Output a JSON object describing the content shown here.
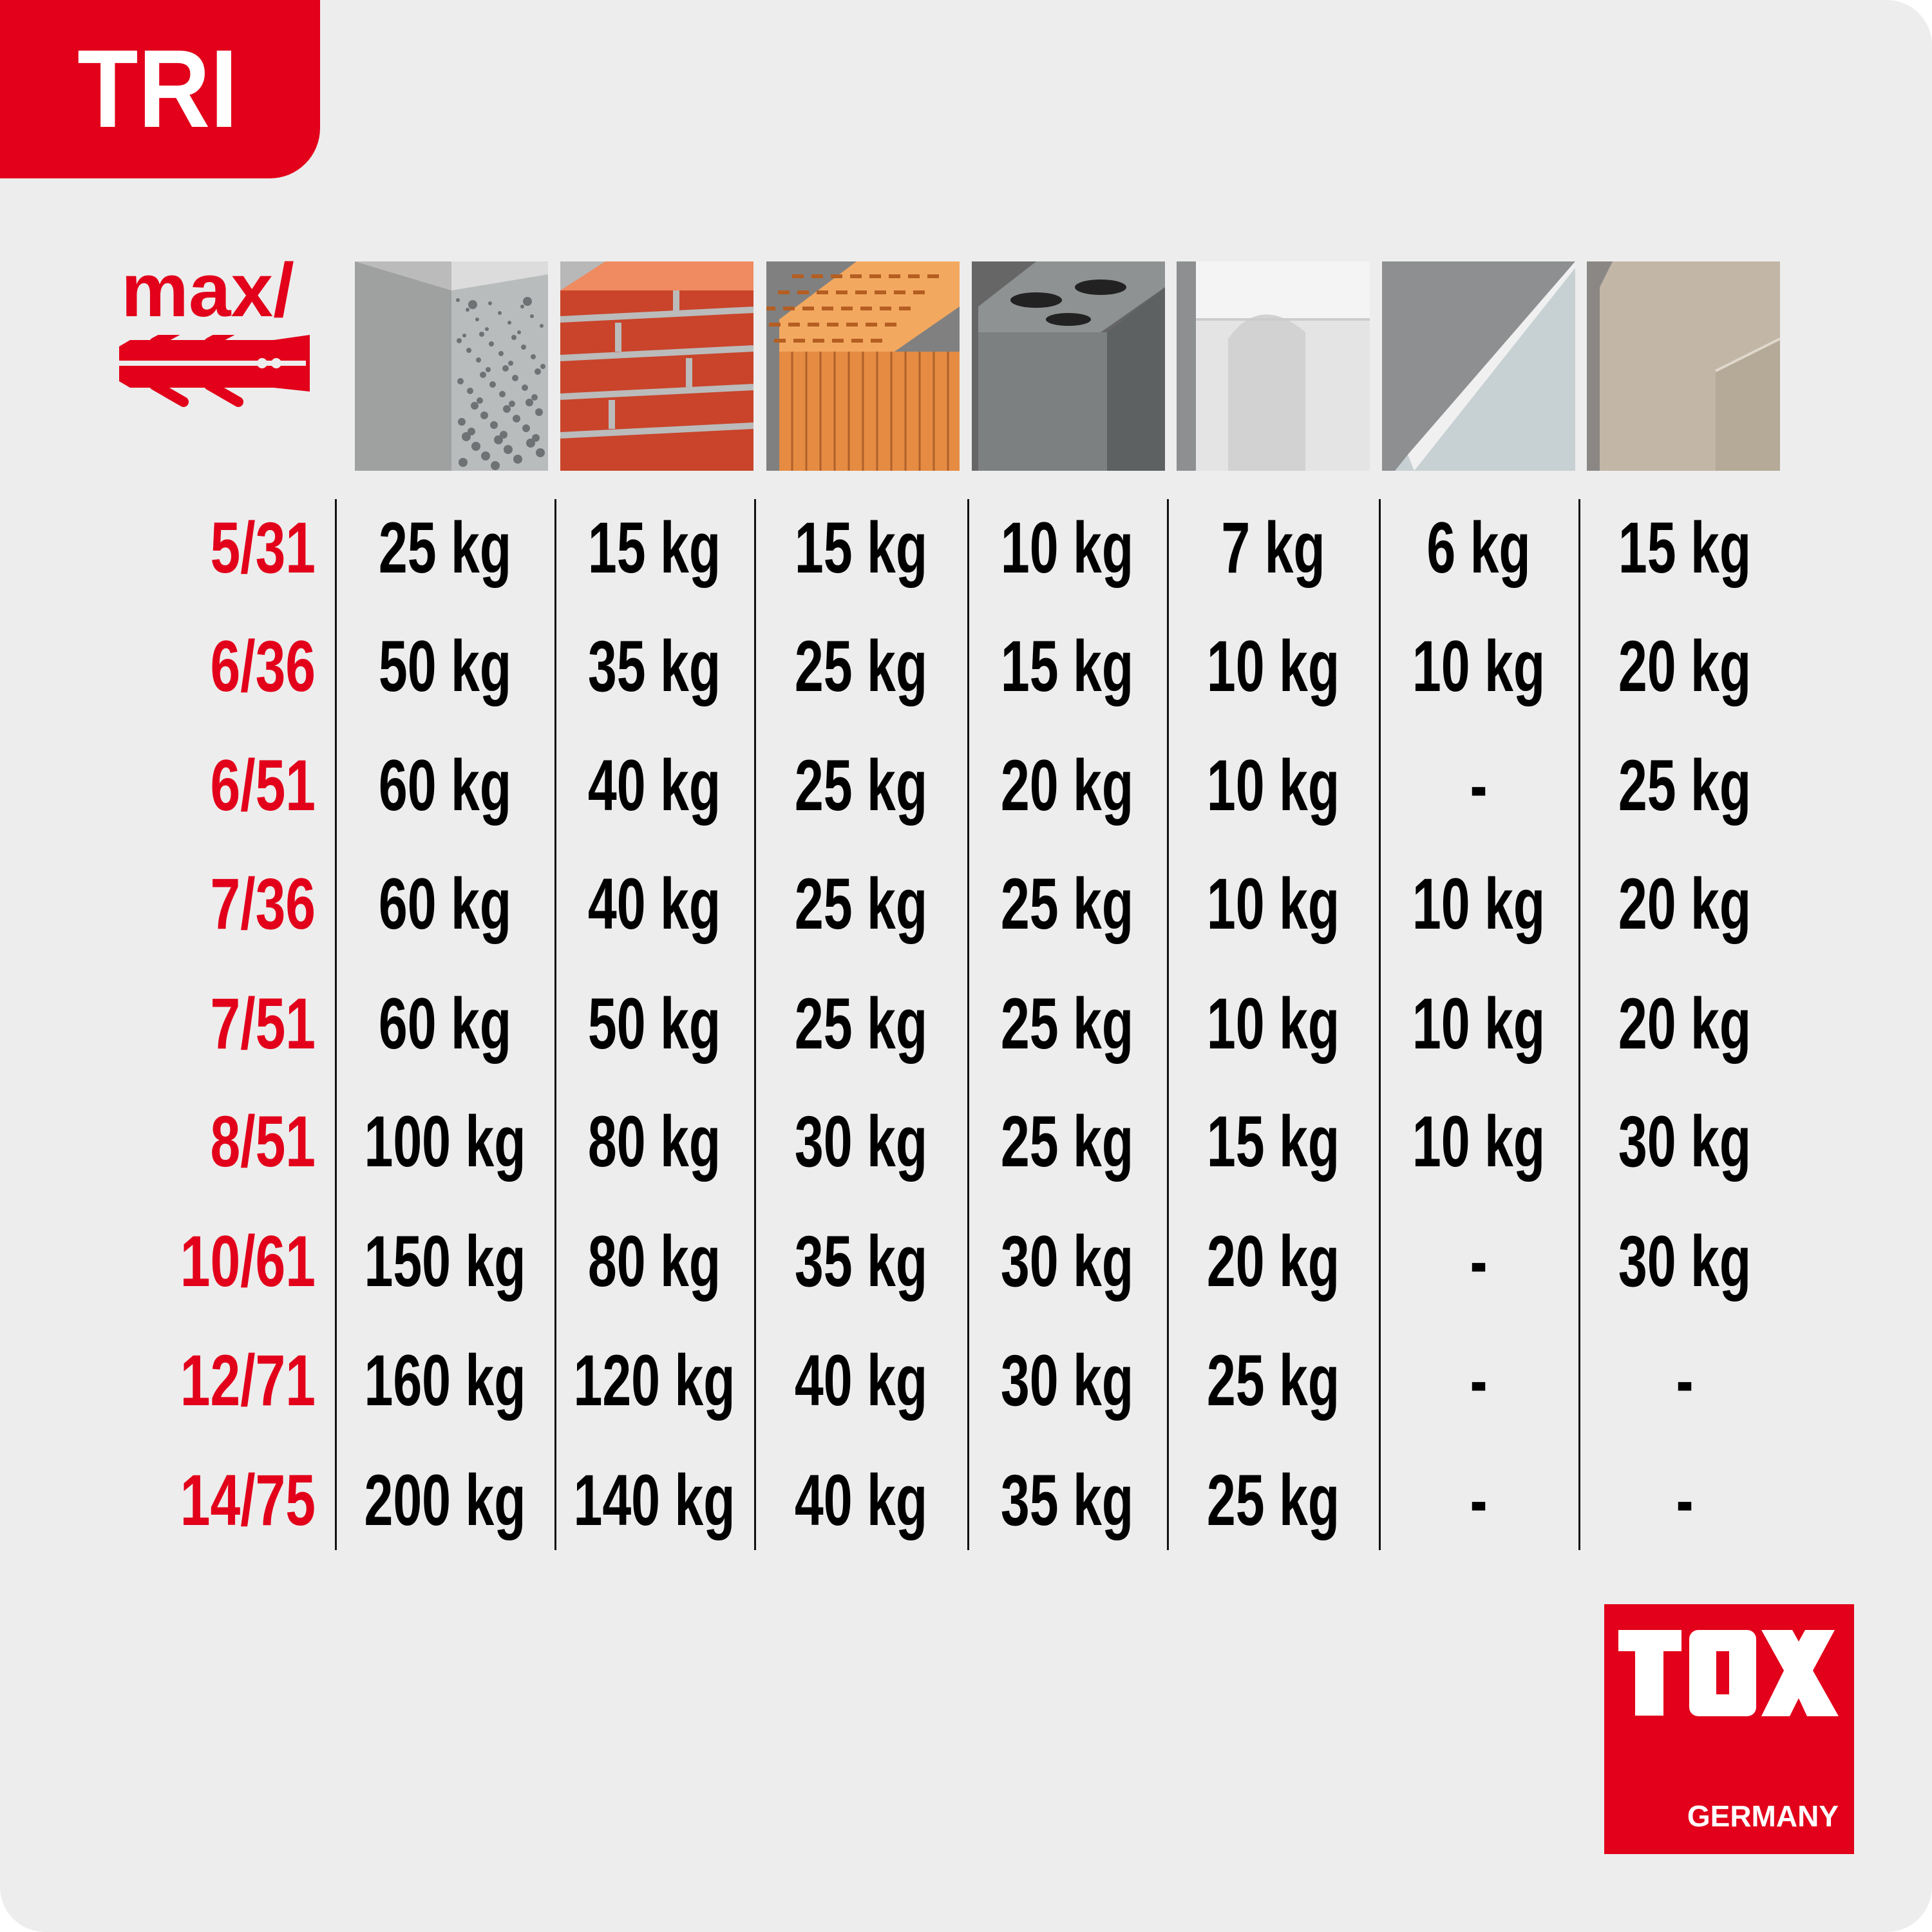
{
  "header": {
    "product": "TRI",
    "max_label": "max/"
  },
  "colors": {
    "brand_red": "#e2001a",
    "background": "#ededed",
    "text": "#000000"
  },
  "materials": [
    {
      "icon": "concrete-icon"
    },
    {
      "icon": "solid-brick-icon"
    },
    {
      "icon": "perforated-clay-brick-icon"
    },
    {
      "icon": "hollow-concrete-block-icon"
    },
    {
      "icon": "aerated-concrete-icon"
    },
    {
      "icon": "gypsum-board-icon"
    },
    {
      "icon": "chipboard-icon"
    }
  ],
  "rows": [
    {
      "size": "5/31",
      "values": [
        "25 kg",
        "15 kg",
        "15 kg",
        "10 kg",
        "7 kg",
        "6 kg",
        "15 kg"
      ]
    },
    {
      "size": "6/36",
      "values": [
        "50 kg",
        "35 kg",
        "25 kg",
        "15 kg",
        "10 kg",
        "10 kg",
        "20 kg"
      ]
    },
    {
      "size": "6/51",
      "values": [
        "60 kg",
        "40 kg",
        "25 kg",
        "20 kg",
        "10 kg",
        "-",
        "25 kg"
      ]
    },
    {
      "size": "7/36",
      "values": [
        "60 kg",
        "40 kg",
        "25 kg",
        "25 kg",
        "10 kg",
        "10 kg",
        "20 kg"
      ]
    },
    {
      "size": "7/51",
      "values": [
        "60 kg",
        "50 kg",
        "25 kg",
        "25 kg",
        "10 kg",
        "10 kg",
        "20 kg"
      ]
    },
    {
      "size": "8/51",
      "values": [
        "100 kg",
        "80 kg",
        "30 kg",
        "25 kg",
        "15 kg",
        "10 kg",
        "30 kg"
      ]
    },
    {
      "size": "10/61",
      "values": [
        "150 kg",
        "80 kg",
        "35 kg",
        "30 kg",
        "20 kg",
        "-",
        "30 kg"
      ]
    },
    {
      "size": "12/71",
      "values": [
        "160 kg",
        "120 kg",
        "40 kg",
        "30 kg",
        "25 kg",
        "-",
        "-"
      ]
    },
    {
      "size": "14/75",
      "values": [
        "200 kg",
        "140 kg",
        "40 kg",
        "35 kg",
        "25 kg",
        "-",
        "-"
      ]
    }
  ],
  "logo": {
    "brand": "TOX",
    "subtitle": "GERMANY"
  }
}
